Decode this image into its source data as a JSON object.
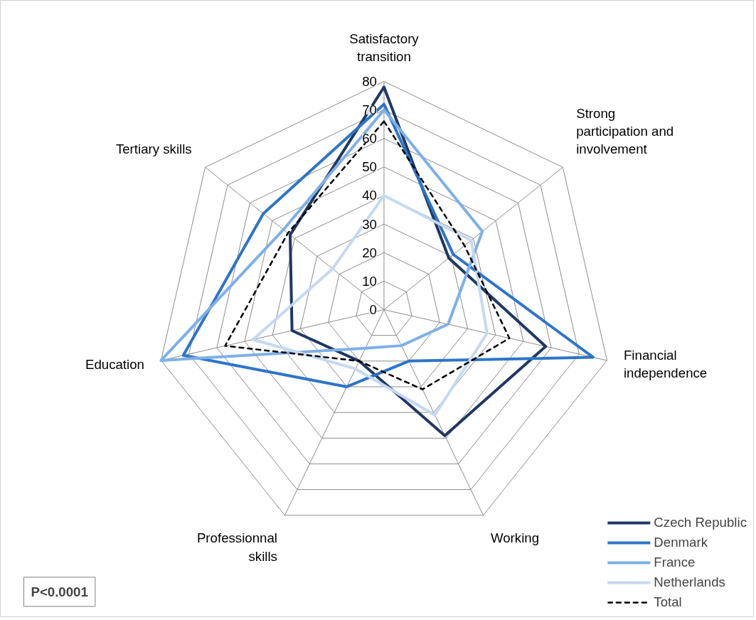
{
  "chart_data": {
    "type": "radar",
    "categories": [
      "Satisfactory\ntransition",
      "Strong\nparticipation and\ninvolvement",
      "Financial\nindependence",
      "Working",
      "Professionnal\nskills",
      "Education",
      "Tertiary skills"
    ],
    "series": [
      {
        "name": "Czech Republic",
        "color": "#1f3864",
        "values": [
          78,
          29,
          58,
          49,
          20,
          33,
          42
        ]
      },
      {
        "name": "Denmark",
        "color": "#2e75c8",
        "values": [
          72,
          31,
          75,
          20,
          30,
          72,
          54
        ]
      },
      {
        "name": "France",
        "color": "#7eb0e6",
        "values": [
          70,
          44,
          23,
          14,
          15,
          80,
          45
        ]
      },
      {
        "name": "Netherlands",
        "color": "#c5d9f1",
        "values": [
          40,
          39,
          37,
          41,
          23,
          47,
          23
        ]
      },
      {
        "name": "Total",
        "color": "#000000",
        "values": [
          66,
          36,
          45,
          31,
          20,
          57,
          43
        ],
        "line_style": "dashed"
      }
    ],
    "ylim": [
      0,
      80
    ],
    "yticks": [
      0,
      10,
      20,
      30,
      40,
      50,
      60,
      70,
      80
    ],
    "grid": true,
    "legend": "bottom right",
    "annotations": [
      "P<0.0001"
    ]
  }
}
